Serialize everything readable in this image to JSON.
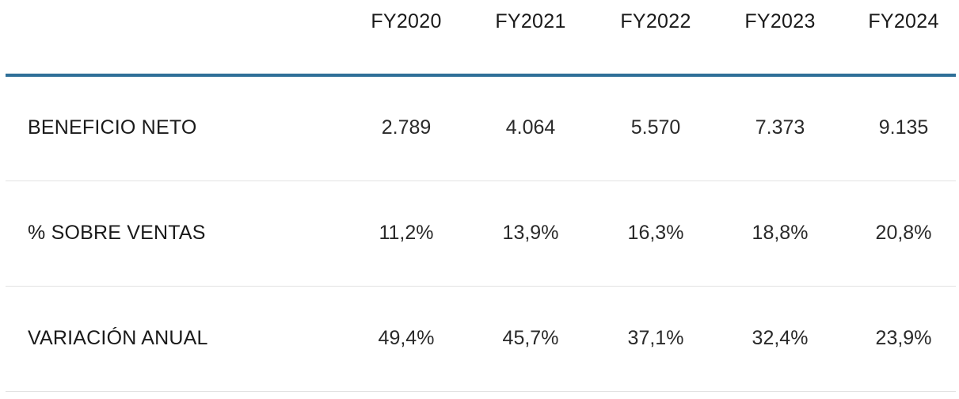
{
  "columns": [
    "FY2020",
    "FY2021",
    "FY2022",
    "FY2023",
    "FY2024"
  ],
  "rows": [
    {
      "label": "BENEFICIO NETO",
      "values": [
        "2.789",
        "4.064",
        "5.570",
        "7.373",
        "9.135"
      ]
    },
    {
      "label": "% SOBRE VENTAS",
      "values": [
        "11,2%",
        "13,9%",
        "16,3%",
        "18,8%",
        "20,8%"
      ]
    },
    {
      "label": "VARIACIÓN ANUAL",
      "values": [
        "49,4%",
        "45,7%",
        "37,1%",
        "32,4%",
        "23,9%"
      ]
    }
  ],
  "colors": {
    "header_rule": "#2e6f98",
    "row_divider": "#e2e2e2"
  }
}
